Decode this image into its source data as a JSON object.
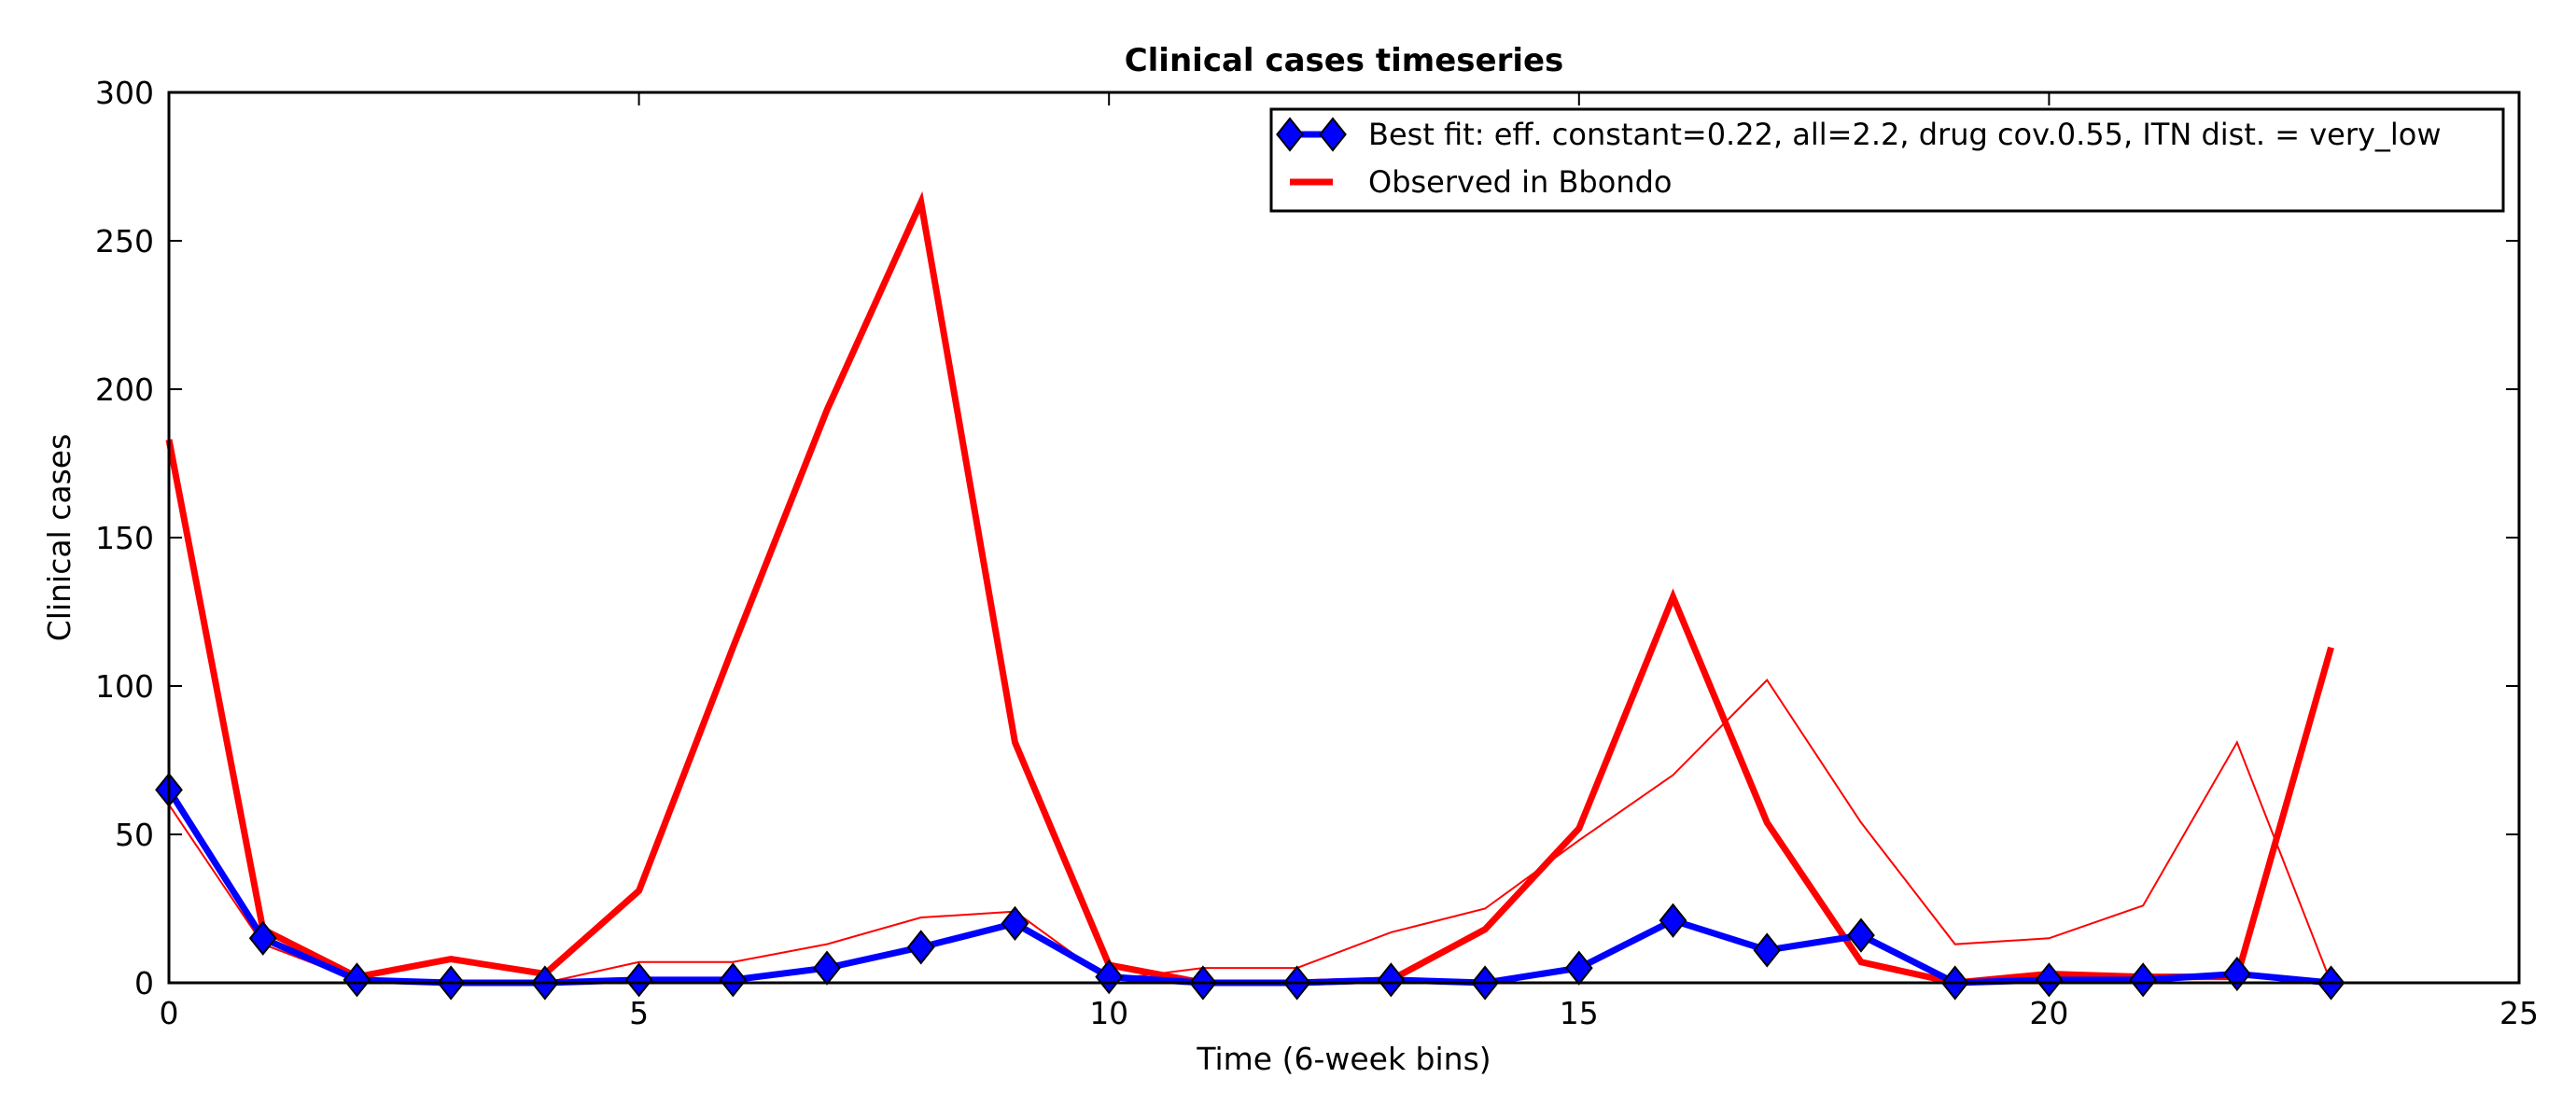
{
  "chart_data": {
    "type": "line",
    "title": "Clinical cases timeseries",
    "xlabel": "Time (6-week bins)",
    "ylabel": "Clinical cases",
    "xlim": [
      0,
      25
    ],
    "ylim": [
      0,
      300
    ],
    "xticks": [
      0,
      5,
      10,
      15,
      20,
      25
    ],
    "yticks": [
      0,
      50,
      100,
      150,
      200,
      250,
      300
    ],
    "grid": false,
    "legend_position": "top-right",
    "series": [
      {
        "name": "Best fit: eff. constant=0.22, all=2.2, drug cov.0.55, ITN dist. = very_low",
        "style": "thick-line-diamond-markers",
        "color": "#0000ff",
        "x": [
          0,
          1,
          2,
          3,
          4,
          5,
          6,
          7,
          8,
          9,
          10,
          11,
          12,
          13,
          14,
          15,
          16,
          17,
          18,
          19,
          20,
          21,
          22,
          23
        ],
        "y": [
          65,
          15,
          1,
          0,
          0,
          1,
          1,
          5,
          12,
          20,
          2,
          0,
          0,
          1,
          0,
          5,
          21,
          11,
          16,
          0,
          1,
          1,
          3,
          0
        ]
      },
      {
        "name": "Observed in Bbondo",
        "style": "thick-line",
        "color": "#ff0000",
        "x": [
          0,
          1,
          2,
          3,
          4,
          5,
          6,
          7,
          8,
          9,
          10,
          11,
          12,
          13,
          14,
          15,
          16,
          17,
          18,
          19,
          20,
          21,
          22,
          23
        ],
        "y": [
          183,
          18,
          2,
          8,
          3,
          31,
          113,
          193,
          263,
          81,
          6,
          0,
          0,
          1,
          18,
          52,
          130,
          54,
          7,
          0,
          3,
          2,
          2,
          113
        ]
      },
      {
        "style": "thin-line",
        "color": "#ff0000",
        "x": [
          0,
          1,
          2,
          3,
          4,
          5,
          6,
          7,
          8,
          9,
          10,
          11,
          12,
          13,
          14,
          15,
          16,
          17,
          18,
          19,
          20,
          21,
          22,
          23
        ],
        "y": [
          60,
          13,
          1,
          0,
          0,
          7,
          7,
          13,
          22,
          24,
          1,
          5,
          5,
          17,
          25,
          48,
          70,
          102,
          54,
          13,
          15,
          26,
          81,
          0
        ]
      }
    ]
  }
}
